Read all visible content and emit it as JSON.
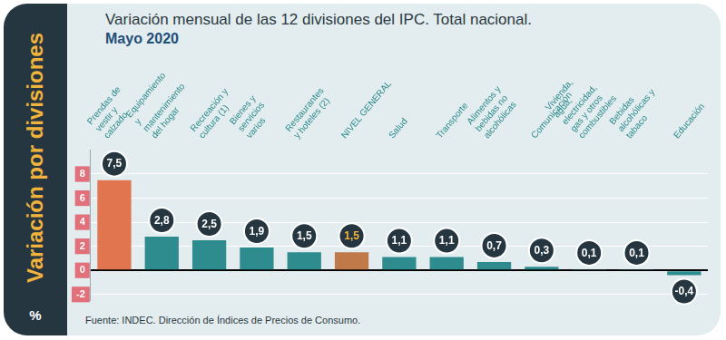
{
  "chart_data": {
    "type": "bar",
    "title": "Variación mensual de las 12 divisiones del IPC. Total nacional.",
    "subtitle": "Mayo 2020",
    "ylabel": "Variación por divisiones",
    "annotations": [
      "%"
    ],
    "source": "Fuente: INDEC. Dirección de Índices de Precios de Consumo.",
    "categories": [
      "Prendas de vestir y calzado",
      "Equipamiento y mantenimiento del hogar",
      "Recreación y cultura (1)",
      "Bienes y servicios varios",
      "Restaurantes y hoteles (2)",
      "NIVEL GENERAL",
      "Salud",
      "Transporte",
      "Alimentos y bebidas no alcohólicas",
      "Comunicación",
      "Vivienda, agua, electricidad, gas y otros combustibles",
      "Bebidas alcohólicas y tabaco",
      "Educación"
    ],
    "values": [
      7.5,
      2.8,
      2.5,
      1.9,
      1.5,
      1.5,
      1.1,
      1.1,
      0.7,
      0.3,
      0.1,
      0.1,
      -0.4
    ],
    "value_labels": [
      "7,5",
      "2,8",
      "2,5",
      "1,9",
      "1,5",
      "1,5",
      "1,1",
      "1,1",
      "0,7",
      "0,3",
      "0,1",
      "0,1",
      "-0,4"
    ],
    "colors": [
      "#e0754f",
      "#2e8b8e",
      "#2e8b8e",
      "#2e8b8e",
      "#2e8b8e",
      "#c07a4a",
      "#2e8b8e",
      "#2e8b8e",
      "#2e8b8e",
      "#2e8b8e",
      "#2e8b8e",
      "#2e8b8e",
      "#2e8b8e"
    ],
    "ylim": [
      -2.5,
      10
    ],
    "yticks": [
      -2,
      0,
      2,
      4,
      6,
      8
    ],
    "grid": true,
    "data_labels": true
  }
}
